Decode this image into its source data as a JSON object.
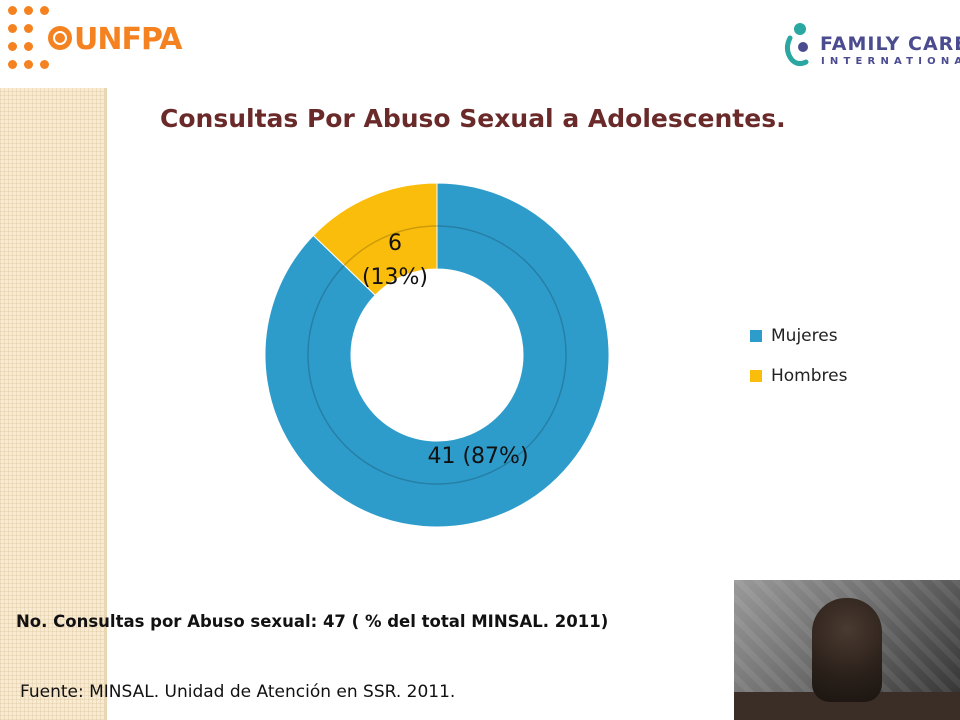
{
  "header": {
    "left_logo": {
      "text": "UNFPA",
      "icon": "un-emblem-icon",
      "color": "#f58220"
    },
    "right_logo": {
      "line1": "FAMILY CARE",
      "line2": "INTERNATIONAL",
      "icon": "family-care-icon",
      "color": "#4b4b8f"
    }
  },
  "slide": {
    "title": "Consultas Por Abuso Sexual a  Adolescentes.",
    "note": "No. Consultas por Abuso sexual: 47   ( % del total MINSAL. 2011)",
    "source": "Fuente: MINSAL. Unidad de Atención en SSR. 2011.",
    "photo": "adolescent-photo"
  },
  "chart_data": {
    "type": "pie",
    "variant": "doughnut",
    "categories": [
      "Mujeres",
      "Hombres"
    ],
    "values": [
      41,
      6
    ],
    "percent_labels": [
      "(87%)",
      "(13%)"
    ],
    "data_labels": [
      "41  (87%)",
      "6\n(13%)"
    ],
    "colors": [
      "#2e9ccb",
      "#fbbd0b"
    ],
    "legend_position": "right"
  }
}
